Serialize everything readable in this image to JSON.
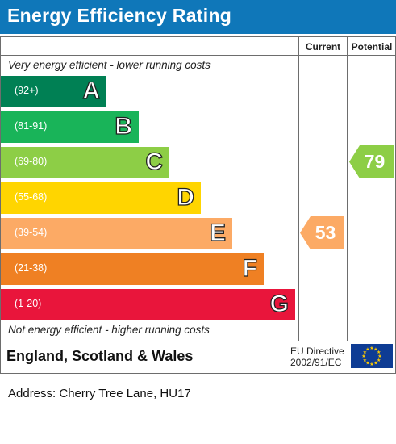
{
  "header": {
    "title": "Energy Efficiency Rating"
  },
  "columns": {
    "current": "Current",
    "potential": "Potential"
  },
  "notes": {
    "top": "Very energy efficient - lower running costs",
    "bottom": "Not energy efficient - higher running costs"
  },
  "bands": [
    {
      "range": "(92+)",
      "letter": "A",
      "color": "#008054"
    },
    {
      "range": "(81-91)",
      "letter": "B",
      "color": "#19b459"
    },
    {
      "range": "(69-80)",
      "letter": "C",
      "color": "#8dce46"
    },
    {
      "range": "(55-68)",
      "letter": "D",
      "color": "#ffd500"
    },
    {
      "range": "(39-54)",
      "letter": "E",
      "color": "#fcaa65"
    },
    {
      "range": "(21-38)",
      "letter": "F",
      "color": "#ef8023"
    },
    {
      "range": "(1-20)",
      "letter": "G",
      "color": "#e9153b"
    }
  ],
  "ratings": {
    "current": {
      "value": "53",
      "band": "E",
      "color": "#fcaa65"
    },
    "potential": {
      "value": "79",
      "band": "C",
      "color": "#8dce46"
    }
  },
  "footer": {
    "region": "England, Scotland & Wales",
    "directive_line1": "EU Directive",
    "directive_line2": "2002/91/EC"
  },
  "address": "Address: Cherry Tree Lane, HU17"
}
